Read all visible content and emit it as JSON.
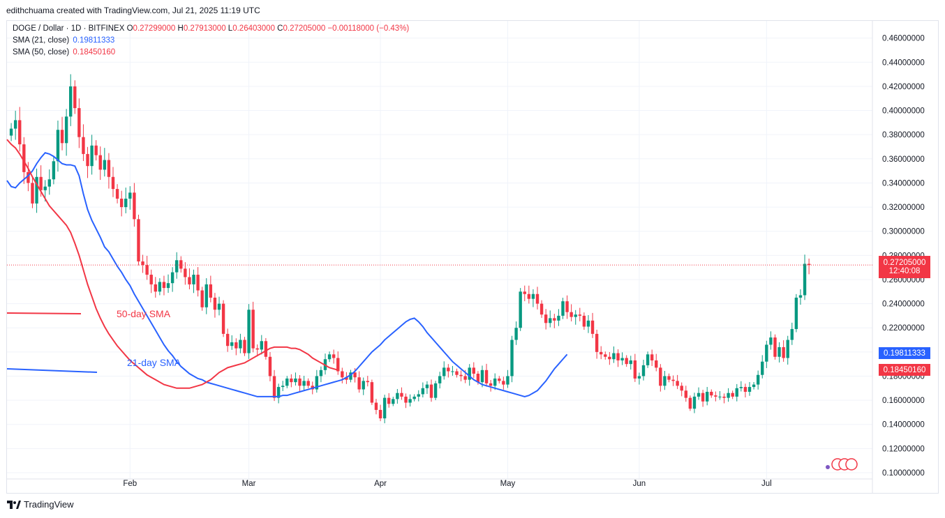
{
  "header": {
    "credit": "edithchuama created with TradingView.com, Jul 21, 2025 11:19 UTC"
  },
  "legend": {
    "symbol": "DOGE / Dollar · 1D · BITFINEX",
    "o_key": "O",
    "o": "0.27299000",
    "h_key": "H",
    "h": "0.27913000",
    "l_key": "L",
    "l": "0.26403000",
    "c_key": "C",
    "c": "0.27205000",
    "change": "−0.00118000 (−0.43%)",
    "sma21_label": "SMA (21, close)",
    "sma21_value": "0.19811333",
    "sma50_label": "SMA (50, close)",
    "sma50_value": "0.18450160"
  },
  "annotations": {
    "sma50": "50-day SMA",
    "sma21": "21-day SMA"
  },
  "price_labels": {
    "last_price": "0.27205000",
    "countdown": "12:40:08",
    "sma21": "0.19811333",
    "sma50": "0.18450160"
  },
  "footer": {
    "brand": "TradingView"
  },
  "colors": {
    "up": "#089981",
    "down": "#f23645",
    "sma21": "#2962ff",
    "sma50": "#f23645",
    "grid": "#f0f3fa"
  },
  "chart_data": {
    "type": "candlestick",
    "series_names": [
      "DOGE / Dollar",
      "SMA (21, close)",
      "SMA (50, close)"
    ],
    "y_ticks": [
      "0.10000000",
      "0.12000000",
      "0.14000000",
      "0.16000000",
      "0.18000000",
      "0.20000000",
      "0.22000000",
      "0.24000000",
      "0.26000000",
      "0.28000000",
      "0.30000000",
      "0.32000000",
      "0.34000000",
      "0.36000000",
      "0.38000000",
      "0.40000000",
      "0.42000000",
      "0.44000000",
      "0.46000000"
    ],
    "ylim": [
      0.1,
      0.465
    ],
    "x_ticks": [
      {
        "label": "Feb",
        "day": 29
      },
      {
        "label": "Mar",
        "day": 57
      },
      {
        "label": "Apr",
        "day": 88
      },
      {
        "label": "May",
        "day": 118
      },
      {
        "label": "Jun",
        "day": 149
      },
      {
        "label": "Jul",
        "day": 179
      }
    ],
    "x_range": [
      0,
      200
    ],
    "close": [
      0.385,
      0.392,
      0.372,
      0.349,
      0.34,
      0.323,
      0.345,
      0.334,
      0.337,
      0.343,
      0.358,
      0.384,
      0.373,
      0.395,
      0.42,
      0.402,
      0.378,
      0.364,
      0.354,
      0.371,
      0.363,
      0.351,
      0.359,
      0.345,
      0.335,
      0.327,
      0.32,
      0.327,
      0.332,
      0.31,
      0.275,
      0.272,
      0.264,
      0.256,
      0.25,
      0.258,
      0.253,
      0.257,
      0.266,
      0.276,
      0.269,
      0.262,
      0.256,
      0.264,
      0.251,
      0.237,
      0.256,
      0.245,
      0.235,
      0.24,
      0.215,
      0.205,
      0.208,
      0.203,
      0.21,
      0.199,
      0.235,
      0.203,
      0.202,
      0.209,
      0.196,
      0.18,
      0.162,
      0.171,
      0.172,
      0.178,
      0.175,
      0.178,
      0.172,
      0.176,
      0.172,
      0.169,
      0.18,
      0.185,
      0.194,
      0.198,
      0.195,
      0.184,
      0.179,
      0.177,
      0.183,
      0.179,
      0.169,
      0.176,
      0.175,
      0.158,
      0.152,
      0.145,
      0.162,
      0.157,
      0.161,
      0.166,
      0.163,
      0.158,
      0.161,
      0.163,
      0.165,
      0.17,
      0.173,
      0.162,
      0.174,
      0.18,
      0.187,
      0.184,
      0.184,
      0.181,
      0.18,
      0.177,
      0.187,
      0.182,
      0.175,
      0.185,
      0.174,
      0.172,
      0.178,
      0.176,
      0.173,
      0.18,
      0.21,
      0.22,
      0.25,
      0.248,
      0.244,
      0.248,
      0.24,
      0.231,
      0.224,
      0.228,
      0.226,
      0.23,
      0.242,
      0.233,
      0.229,
      0.231,
      0.23,
      0.221,
      0.226,
      0.215,
      0.2,
      0.198,
      0.196,
      0.194,
      0.199,
      0.193,
      0.195,
      0.19,
      0.193,
      0.178,
      0.18,
      0.189,
      0.198,
      0.193,
      0.187,
      0.172,
      0.18,
      0.177,
      0.176,
      0.172,
      0.168,
      0.162,
      0.153,
      0.163,
      0.166,
      0.159,
      0.167,
      0.164,
      0.163,
      0.163,
      0.162,
      0.166,
      0.163,
      0.17,
      0.171,
      0.167,
      0.171,
      0.173,
      0.181,
      0.192,
      0.206,
      0.212,
      0.196,
      0.204,
      0.195,
      0.21,
      0.219,
      0.245,
      0.247,
      0.273,
      0.272
    ],
    "sma21": [
      0.342,
      0.337,
      0.336,
      0.34,
      0.343,
      0.346,
      0.35,
      0.356,
      0.361,
      0.365,
      0.364,
      0.362,
      0.359,
      0.356,
      0.355,
      0.355,
      0.354,
      0.346,
      0.331,
      0.318,
      0.309,
      0.302,
      0.295,
      0.287,
      0.283,
      0.277,
      0.271,
      0.266,
      0.26,
      0.255,
      0.248,
      0.242,
      0.236,
      0.23,
      0.224,
      0.218,
      0.212,
      0.206,
      0.201,
      0.197,
      0.192,
      0.188,
      0.185,
      0.182,
      0.18,
      0.178,
      0.177,
      0.175,
      0.174,
      0.173,
      0.172,
      0.171,
      0.17,
      0.169,
      0.168,
      0.167,
      0.166,
      0.165,
      0.164,
      0.163,
      0.163,
      0.163,
      0.163,
      0.163,
      0.163,
      0.164,
      0.164,
      0.165,
      0.166,
      0.167,
      0.168,
      0.169,
      0.17,
      0.171,
      0.172,
      0.173,
      0.174,
      0.175,
      0.176,
      0.177,
      0.179,
      0.181,
      0.184,
      0.188,
      0.192,
      0.196,
      0.2,
      0.203,
      0.206,
      0.21,
      0.213,
      0.216,
      0.219,
      0.222,
      0.225,
      0.227,
      0.228,
      0.225,
      0.221,
      0.216,
      0.212,
      0.208,
      0.204,
      0.2,
      0.196,
      0.192,
      0.189,
      0.186,
      0.183,
      0.18,
      0.177,
      0.175,
      0.173,
      0.172,
      0.171,
      0.17,
      0.169,
      0.168,
      0.167,
      0.166,
      0.165,
      0.164,
      0.163,
      0.164,
      0.166,
      0.168,
      0.172,
      0.176,
      0.181,
      0.186,
      0.19,
      0.194,
      0.198
    ],
    "sma21_start_day": 70,
    "sma50": [
      0.376,
      0.372,
      0.369,
      0.364,
      0.358,
      0.352,
      0.345,
      0.339,
      0.333,
      0.327,
      0.321,
      0.317,
      0.313,
      0.309,
      0.305,
      0.299,
      0.29,
      0.28,
      0.268,
      0.256,
      0.246,
      0.236,
      0.228,
      0.221,
      0.215,
      0.21,
      0.205,
      0.201,
      0.197,
      0.193,
      0.19,
      0.187,
      0.184,
      0.181,
      0.179,
      0.177,
      0.175,
      0.173,
      0.172,
      0.171,
      0.17,
      0.17,
      0.17,
      0.17,
      0.171,
      0.172,
      0.173,
      0.175,
      0.177,
      0.18,
      0.183,
      0.185,
      0.187,
      0.188,
      0.189,
      0.19,
      0.191,
      0.193,
      0.195,
      0.197,
      0.199,
      0.201,
      0.203,
      0.204,
      0.204,
      0.204,
      0.204,
      0.203,
      0.203,
      0.202,
      0.2,
      0.198,
      0.195,
      0.193,
      0.191,
      0.189,
      0.187,
      0.186,
      0.185
    ],
    "sma50_start_day": 70
  }
}
